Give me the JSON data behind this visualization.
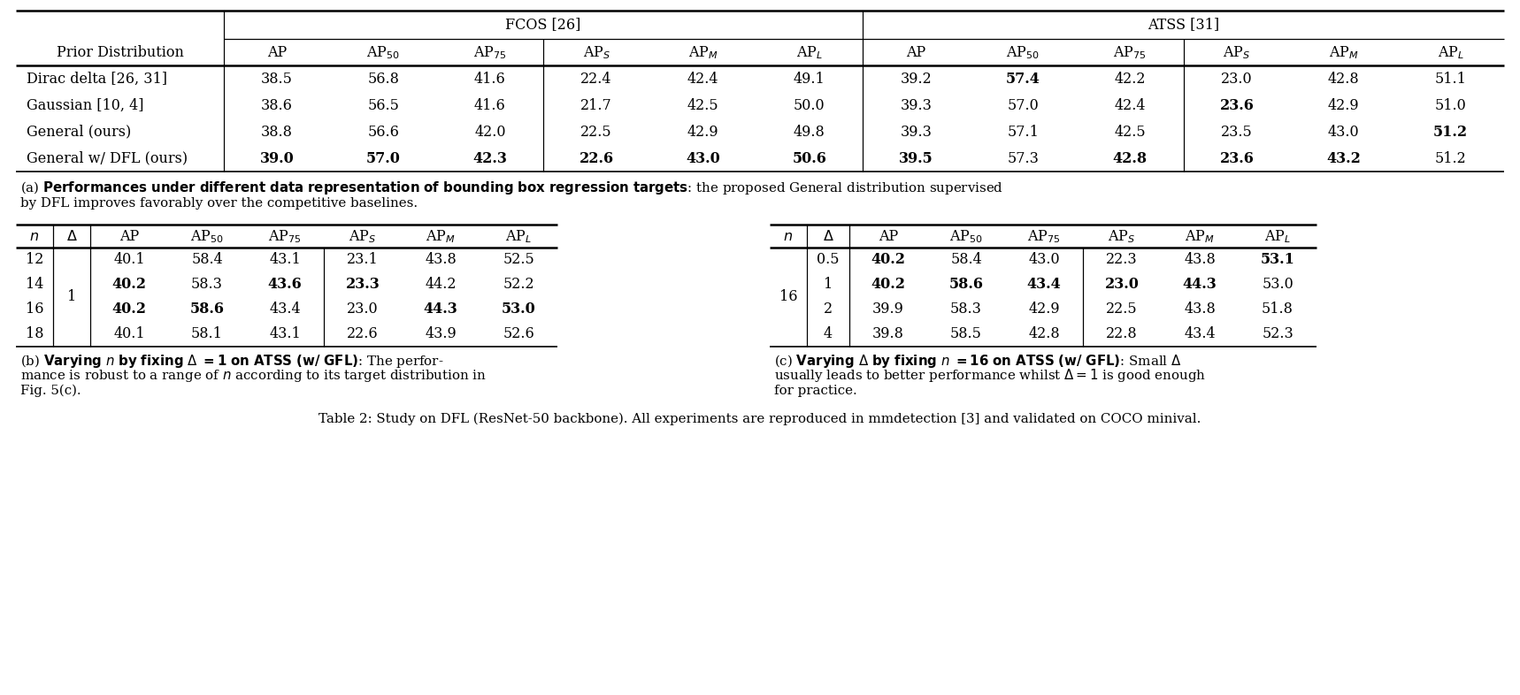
{
  "background_color": "#ffffff",
  "fig_width": 17.18,
  "fig_height": 7.86,
  "table_a": {
    "rows": [
      {
        "label": "Dirac delta [26, 31]",
        "fcos": [
          "38.5",
          "56.8",
          "41.6",
          "22.4",
          "42.4",
          "49.1"
        ],
        "atss": [
          "39.2",
          "57.4",
          "42.2",
          "23.0",
          "42.8",
          "51.1"
        ],
        "fcos_bold": [
          false,
          false,
          false,
          false,
          false,
          false
        ],
        "atss_bold": [
          false,
          true,
          false,
          false,
          false,
          false
        ]
      },
      {
        "label": "Gaussian [10, 4]",
        "fcos": [
          "38.6",
          "56.5",
          "41.6",
          "21.7",
          "42.5",
          "50.0"
        ],
        "atss": [
          "39.3",
          "57.0",
          "42.4",
          "23.6",
          "42.9",
          "51.0"
        ],
        "fcos_bold": [
          false,
          false,
          false,
          false,
          false,
          false
        ],
        "atss_bold": [
          false,
          false,
          false,
          true,
          false,
          false
        ]
      },
      {
        "label": "General (ours)",
        "fcos": [
          "38.8",
          "56.6",
          "42.0",
          "22.5",
          "42.9",
          "49.8"
        ],
        "atss": [
          "39.3",
          "57.1",
          "42.5",
          "23.5",
          "43.0",
          "51.2"
        ],
        "fcos_bold": [
          false,
          false,
          false,
          false,
          false,
          false
        ],
        "atss_bold": [
          false,
          false,
          false,
          false,
          false,
          true
        ]
      },
      {
        "label": "General w/ DFL (ours)",
        "fcos": [
          "39.0",
          "57.0",
          "42.3",
          "22.6",
          "43.0",
          "50.6"
        ],
        "atss": [
          "39.5",
          "57.3",
          "42.8",
          "23.6",
          "43.2",
          "51.2"
        ],
        "fcos_bold": [
          true,
          true,
          true,
          true,
          true,
          true
        ],
        "atss_bold": [
          true,
          false,
          true,
          true,
          true,
          false
        ]
      }
    ]
  },
  "table_b": {
    "rows": [
      {
        "n": "12",
        "ap": "40.1",
        "ap50": "58.4",
        "ap75": "43.1",
        "aps": "23.1",
        "apm": "43.8",
        "apl": "52.5",
        "bold": [
          false,
          false,
          false,
          false,
          false,
          false
        ]
      },
      {
        "n": "14",
        "ap": "40.2",
        "ap50": "58.3",
        "ap75": "43.6",
        "aps": "23.3",
        "apm": "44.2",
        "apl": "52.2",
        "bold": [
          true,
          false,
          true,
          true,
          false,
          false
        ]
      },
      {
        "n": "16",
        "ap": "40.2",
        "ap50": "58.6",
        "ap75": "43.4",
        "aps": "23.0",
        "apm": "44.3",
        "apl": "53.0",
        "bold": [
          true,
          true,
          false,
          false,
          true,
          true
        ]
      },
      {
        "n": "18",
        "ap": "40.1",
        "ap50": "58.1",
        "ap75": "43.1",
        "aps": "22.6",
        "apm": "43.9",
        "apl": "52.6",
        "bold": [
          false,
          false,
          false,
          false,
          false,
          false
        ]
      }
    ]
  },
  "table_c": {
    "rows": [
      {
        "delta": "0.5",
        "ap": "40.2",
        "ap50": "58.4",
        "ap75": "43.0",
        "aps": "22.3",
        "apm": "43.8",
        "apl": "53.1",
        "bold": [
          true,
          false,
          false,
          false,
          false,
          true
        ]
      },
      {
        "delta": "1",
        "ap": "40.2",
        "ap50": "58.6",
        "ap75": "43.4",
        "aps": "23.0",
        "apm": "44.3",
        "apl": "53.0",
        "bold": [
          true,
          true,
          true,
          true,
          true,
          false
        ]
      },
      {
        "delta": "2",
        "ap": "39.9",
        "ap50": "58.3",
        "ap75": "42.9",
        "aps": "22.5",
        "apm": "43.8",
        "apl": "51.8",
        "bold": [
          false,
          false,
          false,
          false,
          false,
          false
        ]
      },
      {
        "delta": "4",
        "ap": "39.8",
        "ap50": "58.5",
        "ap75": "42.8",
        "aps": "22.8",
        "apm": "43.4",
        "apl": "52.3",
        "bold": [
          false,
          false,
          false,
          false,
          false,
          false
        ]
      }
    ]
  }
}
